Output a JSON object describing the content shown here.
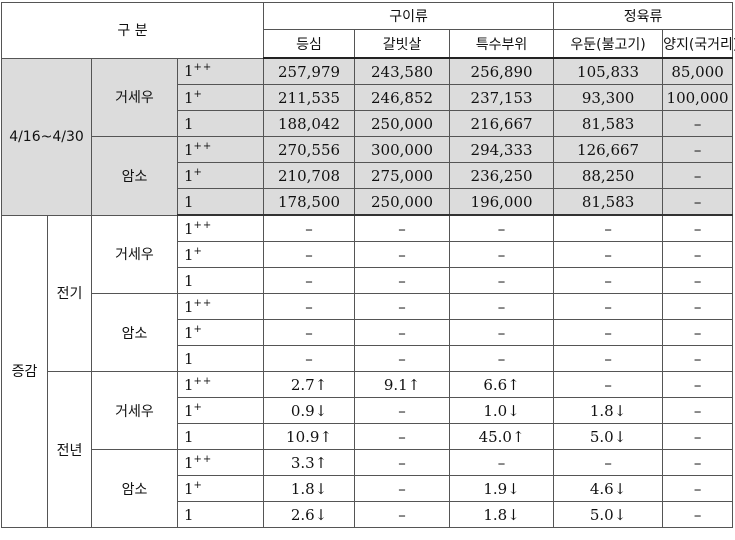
{
  "header": {
    "division": "구 분",
    "group_gui": "구이류",
    "group_jeong": "정육류",
    "cols": [
      "등심",
      "갈빗살",
      "특수부위",
      "우둔(불고기)",
      "양지(국거리)"
    ]
  },
  "period": "4/16~4/30",
  "change_label": "증감",
  "prev_period": "전기",
  "prev_year": "전년",
  "breeds": [
    "거세우",
    "암소"
  ],
  "grades": [
    {
      "base": "1",
      "sup": "++"
    },
    {
      "base": "1",
      "sup": "+"
    },
    {
      "base": "1",
      "sup": ""
    }
  ],
  "rows": [
    [
      "257,979",
      "243,580",
      "256,890",
      "105,833",
      "85,000"
    ],
    [
      "211,535",
      "246,852",
      "237,153",
      "93,300",
      "100,000"
    ],
    [
      "188,042",
      "250,000",
      "216,667",
      "81,583",
      "–"
    ],
    [
      "270,556",
      "300,000",
      "294,333",
      "126,667",
      "–"
    ],
    [
      "210,708",
      "275,000",
      "236,250",
      "88,250",
      "–"
    ],
    [
      "178,500",
      "250,000",
      "196,000",
      "81,583",
      "–"
    ],
    [
      "–",
      "–",
      "–",
      "–",
      "–"
    ],
    [
      "–",
      "–",
      "–",
      "–",
      "–"
    ],
    [
      "–",
      "–",
      "–",
      "–",
      "–"
    ],
    [
      "–",
      "–",
      "–",
      "–",
      "–"
    ],
    [
      "–",
      "–",
      "–",
      "–",
      "–"
    ],
    [
      "–",
      "–",
      "–",
      "–",
      "–"
    ],
    [
      "2.7↑",
      "9.1↑",
      "6.6↑",
      "–",
      "–"
    ],
    [
      "0.9↓",
      "–",
      "1.0↓",
      "1.8↓",
      "–"
    ],
    [
      "10.9↑",
      "–",
      "45.0↑",
      "5.0↓",
      "–"
    ],
    [
      "3.3↑",
      "–",
      "–",
      "–",
      "–"
    ],
    [
      "1.8↓",
      "–",
      "1.9↓",
      "4.6↓",
      "–"
    ],
    [
      "2.6↓",
      "–",
      "1.8↓",
      "5.0↓",
      "–"
    ]
  ]
}
